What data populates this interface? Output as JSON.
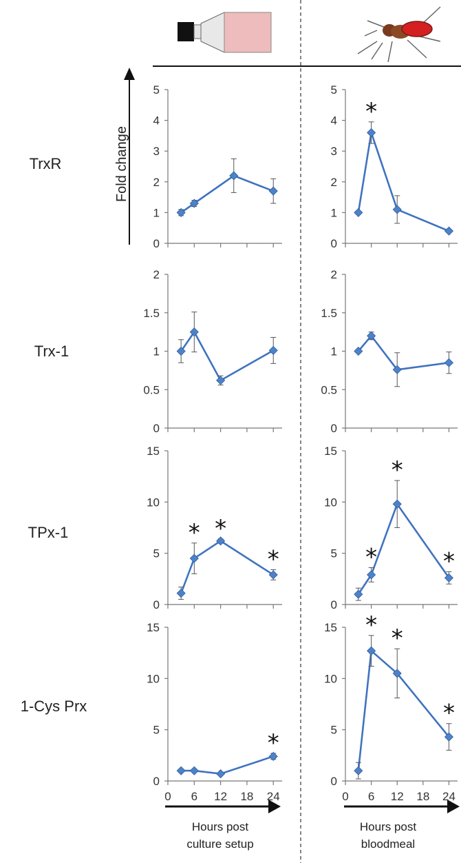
{
  "chart_data": {
    "type": "line",
    "ylabel": "Fold change",
    "x_ticks": [
      "0",
      "6",
      "12",
      "18",
      "24"
    ],
    "x_range": [
      0,
      26
    ],
    "columns": [
      {
        "xlabel_lines": [
          "Hours post",
          "culture setup"
        ],
        "header_icon": "culture-flask-icon"
      },
      {
        "xlabel_lines": [
          "Hours post",
          "bloodmeal"
        ],
        "header_icon": "mosquito-icon"
      }
    ],
    "panels": [
      {
        "gene": "TrxR",
        "y_ticks": [
          "0",
          "1",
          "2",
          "3",
          "4",
          "5"
        ],
        "ylim": [
          0,
          5
        ],
        "culture": {
          "x": [
            3,
            6,
            15,
            24
          ],
          "y": [
            1.0,
            1.3,
            2.2,
            1.7
          ],
          "err": [
            0.1,
            0.1,
            0.55,
            0.4
          ],
          "sig": [
            false,
            false,
            false,
            false
          ]
        },
        "blood": {
          "x": [
            3,
            6,
            12,
            24
          ],
          "y": [
            1.0,
            3.6,
            1.1,
            0.4
          ],
          "err": [
            0.05,
            0.35,
            0.45,
            0.05
          ],
          "sig": [
            false,
            true,
            false,
            false
          ]
        }
      },
      {
        "gene": "Trx-1",
        "y_ticks": [
          "0",
          "0.5",
          "1",
          "1.5",
          "2"
        ],
        "ylim": [
          0,
          2
        ],
        "culture": {
          "x": [
            3,
            6,
            12,
            24
          ],
          "y": [
            1.0,
            1.25,
            0.62,
            1.01
          ],
          "err": [
            0.15,
            0.26,
            0.06,
            0.17
          ],
          "sig": [
            false,
            false,
            false,
            false
          ]
        },
        "blood": {
          "x": [
            3,
            6,
            12,
            24
          ],
          "y": [
            1.0,
            1.2,
            0.76,
            0.85
          ],
          "err": [
            0.02,
            0.05,
            0.22,
            0.14
          ],
          "sig": [
            false,
            false,
            false,
            false
          ]
        }
      },
      {
        "gene": "TPx-1",
        "y_ticks": [
          "0",
          "5",
          "10",
          "15"
        ],
        "ylim": [
          0,
          15
        ],
        "culture": {
          "x": [
            3,
            6,
            12,
            24
          ],
          "y": [
            1.1,
            4.5,
            6.2,
            2.9
          ],
          "err": [
            0.6,
            1.5,
            0.2,
            0.5
          ],
          "sig": [
            false,
            true,
            true,
            true
          ]
        },
        "blood": {
          "x": [
            3,
            6,
            12,
            24
          ],
          "y": [
            1.0,
            2.9,
            9.8,
            2.6
          ],
          "err": [
            0.6,
            0.7,
            2.3,
            0.6
          ],
          "sig": [
            false,
            true,
            true,
            true
          ]
        }
      },
      {
        "gene": "1-Cys Prx",
        "y_ticks": [
          "0",
          "5",
          "10",
          "15"
        ],
        "ylim": [
          0,
          15
        ],
        "culture": {
          "x": [
            3,
            6,
            12,
            24
          ],
          "y": [
            1.0,
            1.0,
            0.7,
            2.4
          ],
          "err": [
            0.15,
            0.15,
            0.1,
            0.3
          ],
          "sig": [
            false,
            false,
            false,
            true
          ]
        },
        "blood": {
          "x": [
            3,
            6,
            12,
            24
          ],
          "y": [
            1.0,
            12.7,
            10.5,
            4.3
          ],
          "err": [
            0.8,
            1.5,
            2.4,
            1.3
          ],
          "sig": [
            false,
            true,
            true,
            true
          ]
        }
      }
    ],
    "significance_marker": "*",
    "colors": {
      "series": "#3f73bf",
      "marker": "#4e82c8",
      "axis": "#777777"
    }
  }
}
